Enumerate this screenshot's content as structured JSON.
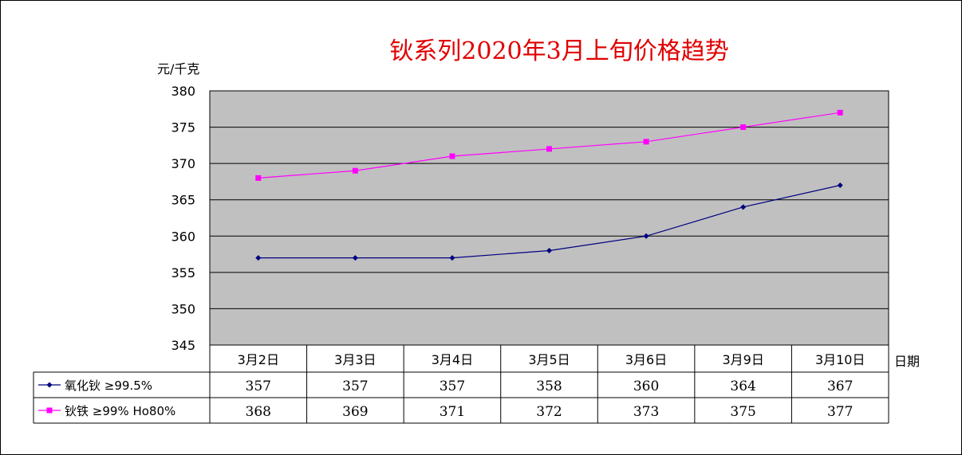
{
  "chart_data": {
    "type": "line",
    "title": "钬系列2020年3月上旬价格趋势",
    "ylabel": "元/千克",
    "xlabel": "日期",
    "ylim": [
      345,
      380
    ],
    "yticks": [
      380,
      375,
      370,
      365,
      360,
      355,
      350,
      345
    ],
    "categories": [
      "3月2日",
      "3月3日",
      "3月4日",
      "3月5日",
      "3月6日",
      "3月9日",
      "3月10日"
    ],
    "grid": true,
    "legend": "data-table-left",
    "plot_background": "#c0c0c0",
    "series": [
      {
        "name": "氧化钬 ≥99.5%",
        "color": "#000080",
        "marker": "diamond",
        "values": [
          357,
          357,
          357,
          358,
          360,
          364,
          367
        ]
      },
      {
        "name": "钬铁 ≥99% Ho80%",
        "color": "#ff00ff",
        "marker": "square",
        "values": [
          368,
          369,
          371,
          372,
          373,
          375,
          377
        ]
      }
    ]
  }
}
